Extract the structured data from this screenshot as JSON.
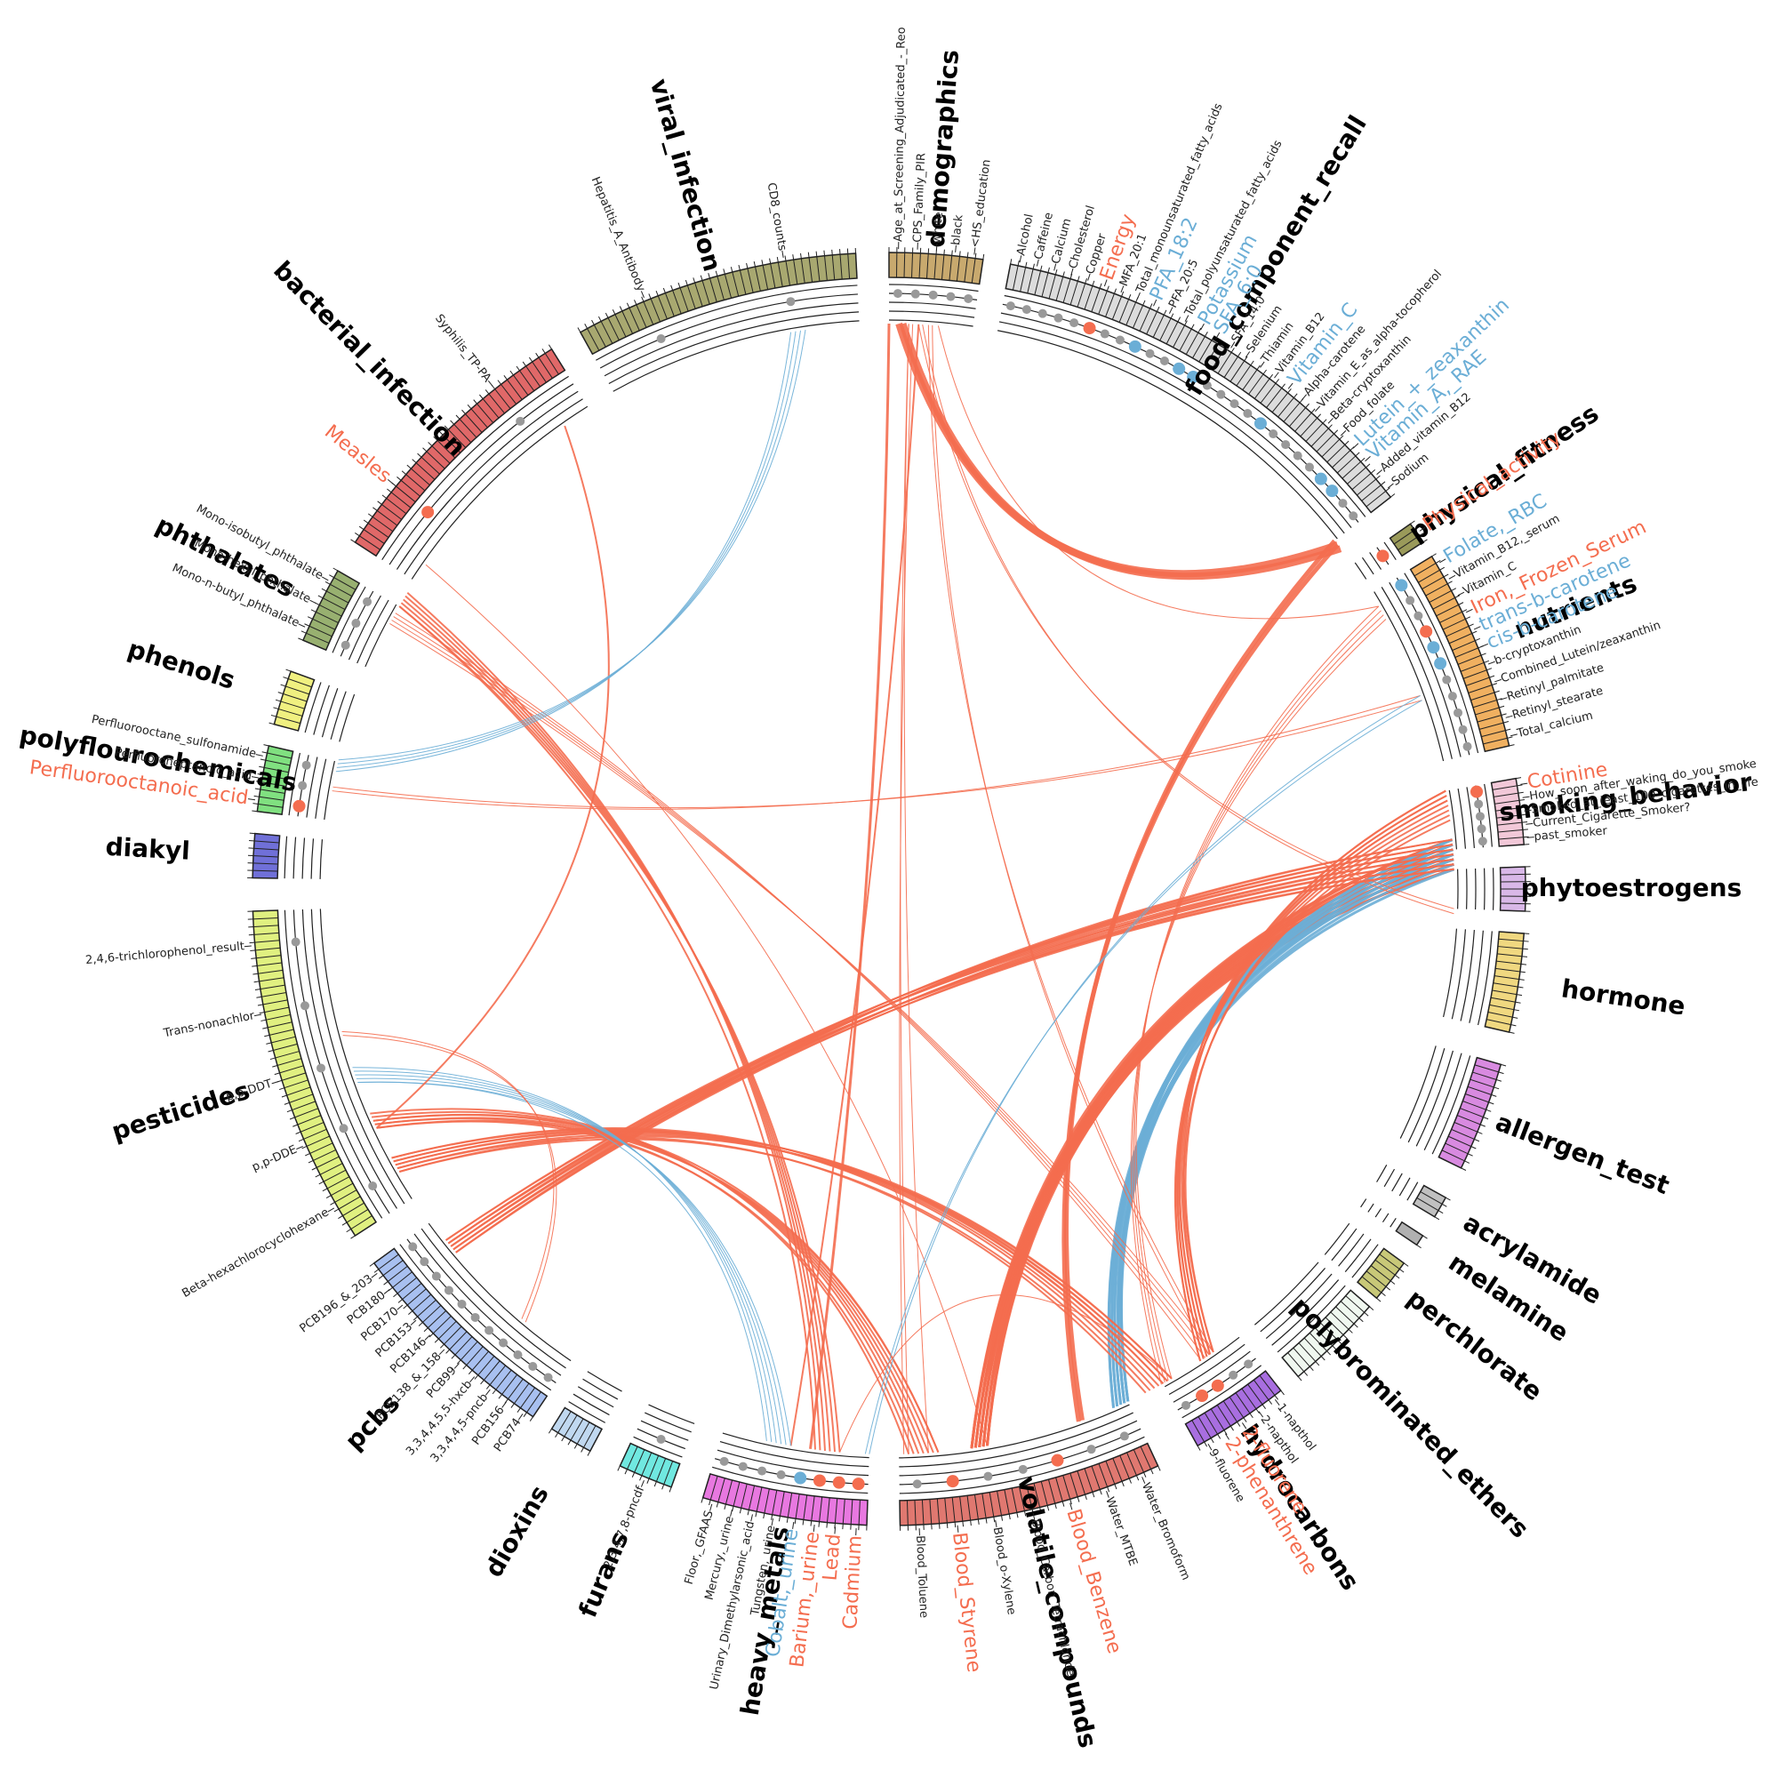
{
  "groups": [
    {
      "name": "demographics",
      "color": "#c8a96e",
      "variables": [
        {
          "label": "Age_at_Screening_Adjudicated_-_Reo"
        },
        {
          "label": "CPS_Family_PIR"
        },
        {
          "label": "white"
        },
        {
          "label": "black"
        },
        {
          "label": "<HS_education"
        }
      ]
    },
    {
      "name": "food_component_recall",
      "color": "#dcdcdc",
      "variables": [
        {
          "label": "Alcohol"
        },
        {
          "label": "Caffeine"
        },
        {
          "label": "Calcium"
        },
        {
          "label": "Cholesterol"
        },
        {
          "label": "Copper"
        },
        {
          "label": "Energy",
          "color": "#f46d4f"
        },
        {
          "label": "MFA_20:1"
        },
        {
          "label": "Total_monounsaturated_fatty_acids"
        },
        {
          "label": "PFA_18:2",
          "color": "#6baed6"
        },
        {
          "label": "PFA_20:5"
        },
        {
          "label": "Total_polyunsaturated_fatty_acids"
        },
        {
          "label": "Potassium",
          "color": "#6baed6"
        },
        {
          "label": "SFA_6:0",
          "color": "#6baed6"
        },
        {
          "label": "SFA_14:0"
        },
        {
          "label": "Selenium"
        },
        {
          "label": "Thiamin"
        },
        {
          "label": "Vitamin_B12"
        },
        {
          "label": "Vitamin_C",
          "color": "#6baed6"
        },
        {
          "label": "Alpha-carotene"
        },
        {
          "label": "Vitamin_E_as_alpha-tocopherol"
        },
        {
          "label": "Beta-cryptoxanthin"
        },
        {
          "label": "Food_folate"
        },
        {
          "label": "Lutein_+_zeaxanthin",
          "color": "#6baed6"
        },
        {
          "label": "Vitamin_A,_RAE",
          "color": "#6baed6"
        },
        {
          "label": "Added_vitamin_B12"
        },
        {
          "label": "Sodium"
        }
      ]
    },
    {
      "name": "physical_fitness",
      "color": "#9a9a5a",
      "variables": [
        {
          "label": "Physical_activity",
          "color": "#f46d4f"
        }
      ]
    },
    {
      "name": "nutrients",
      "color": "#f0b060",
      "variables": [
        {
          "label": "Folate,_RBC",
          "color": "#6baed6"
        },
        {
          "label": "Vitamin_B12,_serum"
        },
        {
          "label": "Vitamin_C"
        },
        {
          "label": "Iron,_Frozen_Serum",
          "color": "#f46d4f"
        },
        {
          "label": "trans-b-carotene",
          "color": "#6baed6"
        },
        {
          "label": "cis-b-carotene",
          "color": "#6baed6"
        },
        {
          "label": "b-cryptoxanthin"
        },
        {
          "label": "Combined_Lutein/zeaxanthin"
        },
        {
          "label": "Retinyl_palmitate"
        },
        {
          "label": "Retinyl_stearate"
        },
        {
          "label": "Total_calcium"
        }
      ]
    },
    {
      "name": "smoking_behavior",
      "color": "#f2c8d8",
      "variables": [
        {
          "label": "Cotinine",
          "color": "#f46d4f"
        },
        {
          "label": "How_soon_after_waking_do_you_smoke"
        },
        {
          "label": "Smoked_at_least_100_cigarettes_in_life"
        },
        {
          "label": "Current_Cigarette_Smoker?"
        },
        {
          "label": "past_smoker"
        }
      ]
    },
    {
      "name": "phytoestrogens",
      "color": "#d9b8e8",
      "variables": []
    },
    {
      "name": "hormone",
      "color": "#f0d880",
      "variables": []
    },
    {
      "name": "allergen_test",
      "color": "#d88ae0",
      "variables": []
    },
    {
      "name": "acrylamide",
      "color": "#c0c0c0",
      "variables": []
    },
    {
      "name": "melamine",
      "color": "#b0b0b0",
      "variables": []
    },
    {
      "name": "perchlorate",
      "color": "#c8c878",
      "variables": []
    },
    {
      "name": "polybrominated_ethers",
      "color": "#f0f8f0",
      "variables": []
    },
    {
      "name": "hydrocarbons",
      "color": "#a86ee0",
      "variables": [
        {
          "label": "1-napthol"
        },
        {
          "label": "2-napthol"
        },
        {
          "label": "2-fluorene",
          "color": "#f46d4f"
        },
        {
          "label": "2-phenanthrene",
          "color": "#f46d4f"
        },
        {
          "label": "9-fluorene"
        }
      ]
    },
    {
      "name": "volatile_compounds",
      "color": "#e07870",
      "variables": [
        {
          "label": "Water_Bromoform"
        },
        {
          "label": "Water_MTBE"
        },
        {
          "label": "Blood_Benzene",
          "color": "#f46d4f"
        },
        {
          "label": "Blood_Carbon_Tetrachloride"
        },
        {
          "label": "Blood_o-Xylene"
        },
        {
          "label": "Blood_Styrene",
          "color": "#f46d4f"
        },
        {
          "label": "Blood_Toluene"
        }
      ]
    },
    {
      "name": "heavy_metals",
      "color": "#e878e0",
      "variables": [
        {
          "label": "Cadmium",
          "color": "#f46d4f"
        },
        {
          "label": "Lead",
          "color": "#f46d4f"
        },
        {
          "label": "Barium,_urine",
          "color": "#f46d4f"
        },
        {
          "label": "Cobalt,_urine",
          "color": "#6baed6"
        },
        {
          "label": "Tungsten,_urine"
        },
        {
          "label": "Urinary_Dimethylarsonic_acid"
        },
        {
          "label": "Mercury,_urine"
        },
        {
          "label": "Floor,_GFAAS"
        }
      ]
    },
    {
      "name": "furans",
      "color": "#70e8e0",
      "variables": [
        {
          "label": "2,3,4,7,8-pncdf"
        }
      ]
    },
    {
      "name": "dioxins",
      "color": "#c0d8f0",
      "variables": []
    },
    {
      "name": "pcbs",
      "color": "#a8c0f0",
      "variables": [
        {
          "label": "PCB74"
        },
        {
          "label": "PCB156"
        },
        {
          "label": "3,3,4,4,5-pncb"
        },
        {
          "label": "3,3,4,4,5,5-hxcb"
        },
        {
          "label": "PCB99"
        },
        {
          "label": "PCB138_&_158"
        },
        {
          "label": "PCB146"
        },
        {
          "label": "PCB153"
        },
        {
          "label": "PCB170"
        },
        {
          "label": "PCB180"
        },
        {
          "label": "PCB196_&_203"
        }
      ]
    },
    {
      "name": "pesticides",
      "color": "#e0f080",
      "variables": [
        {
          "label": "Beta-hexachlorocyclohexane"
        },
        {
          "label": "p,p-DDE"
        },
        {
          "label": "p,p-DDT"
        },
        {
          "label": "Trans-nonachlor"
        },
        {
          "label": "2,4,6-trichlorophenol_result"
        }
      ]
    },
    {
      "name": "diakyl",
      "color": "#7070d8",
      "variables": []
    },
    {
      "name": "polyflourochemicals",
      "color": "#80e080",
      "variables": [
        {
          "label": "Perfluorooctanoic_acid",
          "color": "#f46d4f"
        },
        {
          "label": "Perfluoroheptanoic_acid"
        },
        {
          "label": "Perfluorooctane_sulfonamide"
        }
      ]
    },
    {
      "name": "phenols",
      "color": "#f0f080",
      "variables": []
    },
    {
      "name": "phthalates",
      "color": "#98b070",
      "variables": [
        {
          "label": "Mono-n-butyl_phthalate"
        },
        {
          "label": "Mono-hexyl_phthalate"
        },
        {
          "label": "Mono-isobutyl_phthalate"
        }
      ]
    },
    {
      "name": "bacterial_infection",
      "color": "#e06868",
      "variables": [
        {
          "label": "Measles",
          "color": "#f46d4f"
        },
        {
          "label": "Syphilis_TP-PA"
        }
      ]
    },
    {
      "name": "viral_infection",
      "color": "#a8a870",
      "variables": [
        {
          "label": "Hepatitis_A_Antibody"
        },
        {
          "label": "CD8_counts"
        }
      ]
    }
  ]
}
